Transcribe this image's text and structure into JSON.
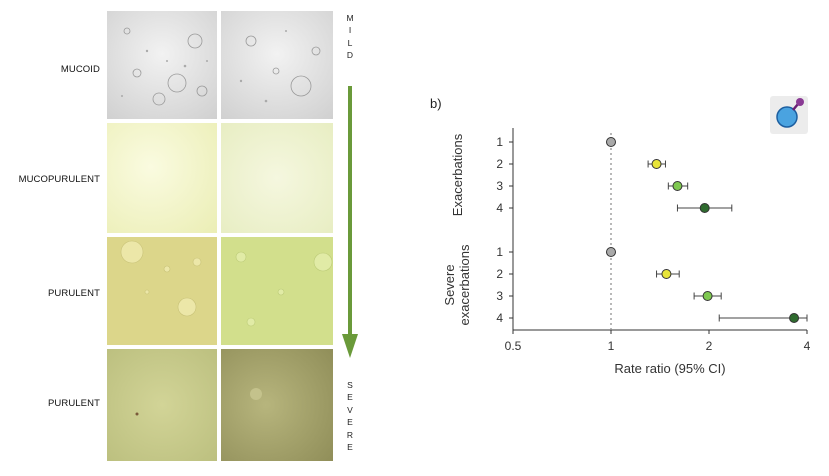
{
  "left_panel": {
    "rows": [
      {
        "label": "MUCOID",
        "tones": [
          "#e3e3e3",
          "#d6d6d6"
        ]
      },
      {
        "label": "MUCOPURULENT",
        "tones": [
          "#f2f4c8",
          "#eef2cf"
        ]
      },
      {
        "label": "PURULENT",
        "tones": [
          "#dfd98c",
          "#d3e08b"
        ]
      },
      {
        "label": "PURULENT",
        "tones": [
          "#c9cc8a",
          "#a9a86e"
        ]
      }
    ],
    "severity_top": "MILD",
    "severity_bottom": "SEVERE",
    "arrow_color": "#6a9a3a"
  },
  "forest_plot": {
    "panel_letter": "b)"
  },
  "chart_data": {
    "type": "forest",
    "xlabel": "Rate ratio (95% CI)",
    "x_scale": "log",
    "xlim": [
      0.5,
      4
    ],
    "x_ticks": [
      "0.5",
      "1",
      "2",
      "4"
    ],
    "reference_line": 1,
    "groups": [
      {
        "name": "Exacerbations",
        "items": [
          {
            "label": "1",
            "estimate": 1.0,
            "ci": null,
            "color": "#a9a9a9"
          },
          {
            "label": "2",
            "estimate": 1.38,
            "ci": [
              1.3,
              1.47
            ],
            "color": "#e8e53a"
          },
          {
            "label": "3",
            "estimate": 1.6,
            "ci": [
              1.5,
              1.72
            ],
            "color": "#7ec850"
          },
          {
            "label": "4",
            "estimate": 1.94,
            "ci": [
              1.6,
              2.35
            ],
            "color": "#2f6b2f"
          }
        ]
      },
      {
        "name": "Severe exacerbations",
        "items": [
          {
            "label": "1",
            "estimate": 1.0,
            "ci": null,
            "color": "#a9a9a9"
          },
          {
            "label": "2",
            "estimate": 1.48,
            "ci": [
              1.38,
              1.62
            ],
            "color": "#e8e53a"
          },
          {
            "label": "3",
            "estimate": 1.98,
            "ci": [
              1.8,
              2.18
            ],
            "color": "#7ec850"
          },
          {
            "label": "4",
            "estimate": 3.65,
            "ci": [
              2.15,
              4.0
            ],
            "color": "#2f6b2f"
          }
        ]
      }
    ]
  }
}
